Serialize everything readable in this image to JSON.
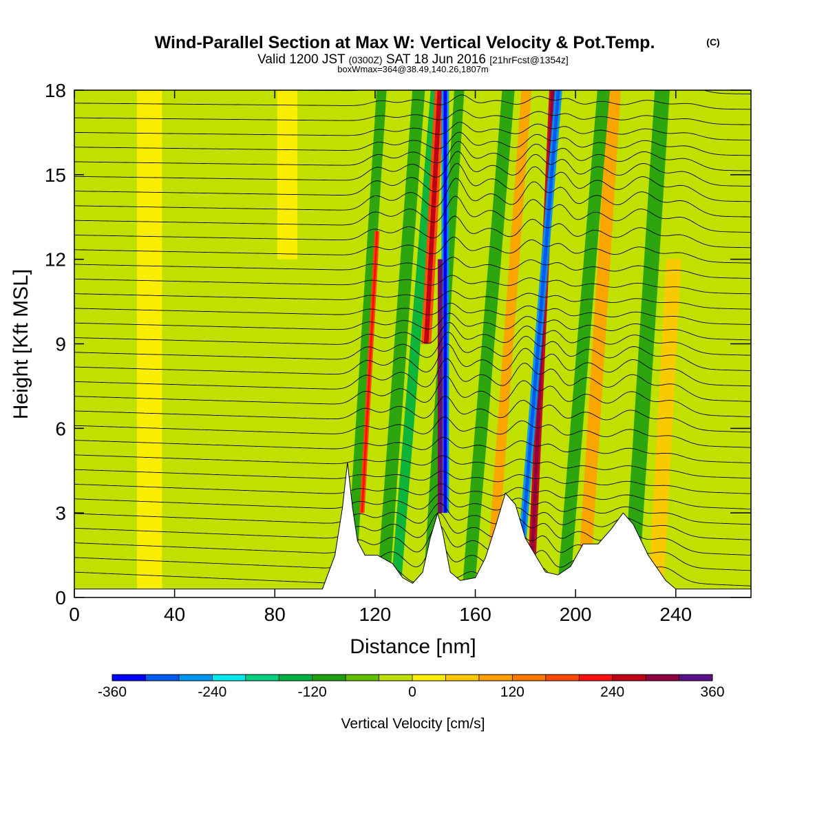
{
  "title": {
    "main": "Wind-Parallel Section at Max W: Vertical Velocity & Pot.Temp.",
    "copyright": "(C)",
    "valid_prefix": "Valid 1200 JST",
    "valid_zone": "(0300Z)",
    "valid_date": "SAT 18 Jun 2016",
    "valid_fcst": "[21hrFcst@1354z]",
    "box": "boxWmax=364@38.49,140.26,1807m"
  },
  "chart_data": {
    "type": "heatmap",
    "xlabel": "Distance [nm]",
    "ylabel": "Height [Kft MSL]",
    "xlim": [
      0,
      270
    ],
    "ylim": [
      0,
      18
    ],
    "x_ticks": [
      "0",
      "40",
      "80",
      "120",
      "160",
      "200",
      "240"
    ],
    "y_ticks": [
      "0",
      "3",
      "6",
      "9",
      "12",
      "15",
      "18"
    ],
    "colorbar": {
      "label": "Vertical Velocity [cm/s]",
      "range": [
        -360,
        360
      ],
      "tick_labels": [
        "-360",
        "-240",
        "-120",
        "0",
        "120",
        "240",
        "360"
      ],
      "colors": [
        "#0000ff",
        "#005af0",
        "#0096f0",
        "#00eaf0",
        "#00d080",
        "#00b040",
        "#20a010",
        "#60c000",
        "#c0e000",
        "#ffee00",
        "#ffc800",
        "#ffa000",
        "#ff7800",
        "#ff4800",
        "#ff1010",
        "#c00018",
        "#900040",
        "#5a1088"
      ]
    },
    "terrain": [
      [
        0,
        0.3
      ],
      [
        99,
        0.3
      ],
      [
        104,
        1.5
      ],
      [
        107,
        3.2
      ],
      [
        109,
        4.8
      ],
      [
        111,
        3.2
      ],
      [
        113,
        2.0
      ],
      [
        116,
        1.5
      ],
      [
        121,
        1.5
      ],
      [
        127,
        1.2
      ],
      [
        131,
        0.7
      ],
      [
        135,
        0.5
      ],
      [
        139,
        0.9
      ],
      [
        142,
        2.1
      ],
      [
        145,
        3.0
      ],
      [
        147,
        2.3
      ],
      [
        150,
        0.9
      ],
      [
        154,
        0.6
      ],
      [
        160,
        0.7
      ],
      [
        164,
        1.4
      ],
      [
        168,
        2.5
      ],
      [
        172,
        3.7
      ],
      [
        176,
        3.3
      ],
      [
        180,
        2.1
      ],
      [
        184,
        1.5
      ],
      [
        188,
        0.9
      ],
      [
        193,
        0.8
      ],
      [
        198,
        1.1
      ],
      [
        203,
        1.9
      ],
      [
        209,
        1.9
      ],
      [
        214,
        2.4
      ],
      [
        219,
        3.0
      ],
      [
        223,
        2.6
      ],
      [
        229,
        1.5
      ],
      [
        236,
        0.6
      ],
      [
        240,
        0.3
      ],
      [
        270,
        0.3
      ]
    ],
    "velocity_bands": [
      {
        "x": 110,
        "slope": 0.7,
        "width": 4,
        "w": -90,
        "z": [
          0,
          18
        ]
      },
      {
        "x": 113,
        "slope": 0.6,
        "width": 2,
        "w": 160,
        "z": [
          3,
          13
        ]
      },
      {
        "x": 123,
        "slope": 0.8,
        "width": 5,
        "w": -100,
        "z": [
          0,
          18
        ]
      },
      {
        "x": 128,
        "slope": 0.9,
        "width": 4,
        "w": -140,
        "z": [
          0,
          18
        ]
      },
      {
        "x": 135,
        "slope": 0.6,
        "width": 4,
        "w": 180,
        "z": [
          9,
          18
        ]
      },
      {
        "x": 141,
        "slope": 0.7,
        "width": 4,
        "w": -120,
        "z": [
          0,
          18
        ]
      },
      {
        "x": 146,
        "slope": 0.0,
        "width": 2,
        "w": 300,
        "z": [
          3,
          12
        ]
      },
      {
        "x": 148,
        "slope": 0.0,
        "width": 3,
        "w": -280,
        "z": [
          3,
          18
        ]
      },
      {
        "x": 157,
        "slope": 0.9,
        "width": 5,
        "w": -120,
        "z": [
          0,
          18
        ]
      },
      {
        "x": 166,
        "slope": 0.8,
        "width": 4,
        "w": 110,
        "z": [
          0,
          18
        ]
      },
      {
        "x": 177,
        "slope": 0.9,
        "width": 3,
        "w": -250,
        "z": [
          1,
          18
        ]
      },
      {
        "x": 182,
        "slope": 0.5,
        "width": 3,
        "w": 240,
        "z": [
          1,
          18
        ]
      },
      {
        "x": 195,
        "slope": 0.9,
        "width": 5,
        "w": -110,
        "z": [
          0,
          18
        ]
      },
      {
        "x": 203,
        "slope": 0.7,
        "width": 5,
        "w": 100,
        "z": [
          0,
          18
        ]
      },
      {
        "x": 222,
        "slope": 0.7,
        "width": 6,
        "w": -90,
        "z": [
          0,
          18
        ]
      },
      {
        "x": 232,
        "slope": 0.6,
        "width": 6,
        "w": 70,
        "z": [
          0,
          12
        ]
      },
      {
        "x": 30,
        "slope": 0.0,
        "width": 10,
        "w": 20,
        "z": [
          0,
          18
        ]
      },
      {
        "x": 85,
        "slope": 0.0,
        "width": 8,
        "w": 25,
        "z": [
          12,
          18
        ]
      }
    ]
  }
}
